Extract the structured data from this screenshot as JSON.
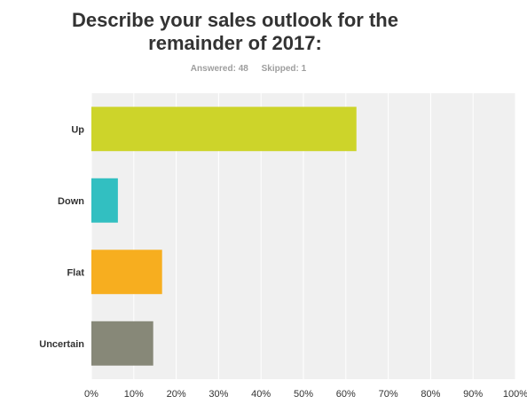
{
  "chart_data": {
    "type": "bar",
    "orientation": "horizontal",
    "title": "Describe your sales outlook for the remainder of 2017:",
    "title_lines": [
      "Describe your sales outlook for the",
      "remainder of 2017:"
    ],
    "answered_text": "Answered: 48",
    "skipped_text": "Skipped: 1",
    "categories": [
      "Up",
      "Down",
      "Flat",
      "Uncertain"
    ],
    "values": [
      62.5,
      6.25,
      16.67,
      14.58
    ],
    "colors": [
      "#cdd42a",
      "#32bfc1",
      "#f7ae1f",
      "#878878"
    ],
    "xlim": [
      0,
      100
    ],
    "x_ticks": [
      "0%",
      "10%",
      "20%",
      "30%",
      "40%",
      "50%",
      "60%",
      "70%",
      "80%",
      "90%",
      "100%"
    ],
    "grid": true,
    "plot_background": "#f0f0f0"
  }
}
